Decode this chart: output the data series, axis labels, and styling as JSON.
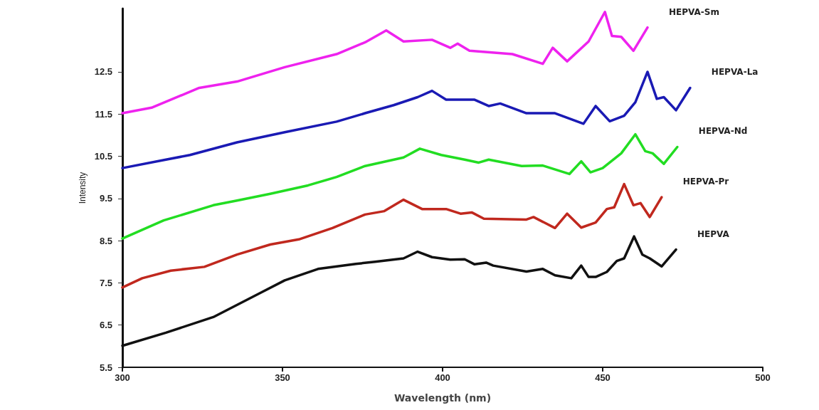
{
  "chart_data": {
    "type": "line",
    "xlabel": "Wavelength (nm)",
    "ylabel": "Intensity",
    "xlim": [
      300,
      500
    ],
    "xticks": [
      300,
      350,
      400,
      450,
      500
    ],
    "ylim": [
      5.5,
      14
    ],
    "yticks": [
      5.5,
      6.5,
      7.5,
      8.5,
      9.5,
      10.5,
      11.5,
      12.5
    ],
    "grid": false,
    "legend": false,
    "marker": "none",
    "line_style": "solid",
    "series": [
      {
        "name": "HEPVA-Sm",
        "color": "#ee22ee",
        "x": [
          300,
          309.1,
          324,
          335.8,
          350.7,
          366.9,
          375.8,
          382.4,
          387.8,
          396.7,
          402.4,
          404.7,
          408.4,
          421.8,
          431.3,
          434.4,
          438.9,
          445.6,
          450.7,
          452.9,
          455.8,
          459.6,
          464
        ],
        "values": [
          11.52,
          11.65,
          12.12,
          12.27,
          12.61,
          12.92,
          13.2,
          13.48,
          13.22,
          13.26,
          13.07,
          13.17,
          13,
          12.92,
          12.69,
          13.07,
          12.75,
          13.22,
          13.92,
          13.35,
          13.33,
          13,
          13.55
        ]
      },
      {
        "name": "HEPVA-La",
        "color": "#1a1ab4",
        "x": [
          300,
          313.6,
          321.1,
          335.8,
          350.7,
          366.9,
          375.8,
          384.7,
          392.2,
          396.7,
          401.1,
          410,
          414.4,
          418,
          426.2,
          435.1,
          444,
          447.8,
          452.2,
          456.7,
          460.2,
          464,
          466.9,
          469.1,
          472.9,
          477.3
        ],
        "values": [
          10.22,
          10.42,
          10.53,
          10.83,
          11.07,
          11.32,
          11.52,
          11.71,
          11.9,
          12.05,
          11.84,
          11.84,
          11.69,
          11.75,
          11.52,
          11.52,
          11.27,
          11.69,
          11.33,
          11.46,
          11.78,
          12.5,
          11.86,
          11.9,
          11.59,
          12.12
        ]
      },
      {
        "name": "HEPVA-Nd",
        "color": "#22dd22",
        "x": [
          300,
          312.9,
          328.4,
          335.8,
          346.2,
          358,
          366.9,
          375.8,
          387.8,
          392.9,
          399.6,
          406.9,
          411.3,
          414.4,
          424.7,
          431.3,
          439.6,
          443.3,
          446.2,
          450,
          455.8,
          460.2,
          463.3,
          465.6,
          469.1,
          473.3
        ],
        "values": [
          8.55,
          8.98,
          9.34,
          9.45,
          9.61,
          9.81,
          10.01,
          10.27,
          10.47,
          10.68,
          10.53,
          10.42,
          10.35,
          10.42,
          10.27,
          10.28,
          10.08,
          10.38,
          10.12,
          10.22,
          10.57,
          11.02,
          10.62,
          10.57,
          10.32,
          10.72
        ]
      },
      {
        "name": "HEPVA-Pr",
        "color": "#c0281e",
        "x": [
          300,
          306.2,
          315.1,
          325.6,
          335.8,
          346.2,
          355.1,
          365.6,
          375.8,
          381.8,
          387.8,
          393.6,
          401.1,
          405.6,
          409.1,
          412.9,
          426.2,
          428.4,
          435.1,
          438.9,
          443.3,
          447.8,
          451.3,
          453.6,
          456.7,
          459.6,
          461.8,
          464.7,
          468.4
        ],
        "values": [
          7.39,
          7.61,
          7.79,
          7.88,
          8.17,
          8.41,
          8.53,
          8.8,
          9.12,
          9.2,
          9.47,
          9.25,
          9.25,
          9.14,
          9.17,
          9.02,
          9,
          9.06,
          8.8,
          9.14,
          8.81,
          8.93,
          9.25,
          9.29,
          9.84,
          9.34,
          9.39,
          9.06,
          9.53
        ]
      },
      {
        "name": "HEPVA",
        "color": "#111111",
        "x": [
          300,
          313.6,
          328.4,
          343.3,
          350.7,
          361.1,
          372.9,
          378.9,
          387.8,
          392.2,
          396.7,
          402.4,
          406.9,
          410,
          413.6,
          415.8,
          426.2,
          431.3,
          435.1,
          440.2,
          443.3,
          445.6,
          447.8,
          451.3,
          454.4,
          456.7,
          459.8,
          462.4,
          464.7,
          468.4,
          472.9
        ],
        "values": [
          6.01,
          6.32,
          6.69,
          7.27,
          7.56,
          7.83,
          7.95,
          8,
          8.08,
          8.24,
          8.11,
          8.05,
          8.06,
          7.94,
          7.98,
          7.91,
          7.77,
          7.83,
          7.68,
          7.61,
          7.91,
          7.64,
          7.64,
          7.76,
          8.02,
          8.08,
          8.6,
          8.17,
          8.08,
          7.89,
          8.29
        ]
      }
    ]
  }
}
